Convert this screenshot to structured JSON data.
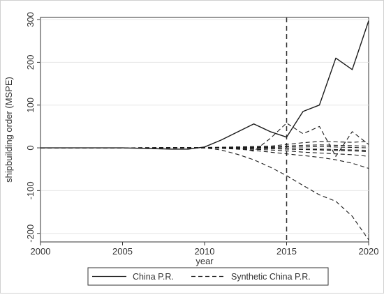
{
  "chart_data": {
    "type": "line",
    "title": "",
    "xlabel": "year",
    "ylabel": "shipbuilding order (MSPE)",
    "xlim": [
      2000,
      2020
    ],
    "ylim": [
      -220,
      305
    ],
    "x_ticks": [
      2000,
      2005,
      2010,
      2015,
      2020
    ],
    "x_tick_labels": [
      "2000",
      "2005",
      "2010",
      "2015",
      "2020"
    ],
    "y_ticks": [
      -200,
      -100,
      0,
      100,
      200,
      300
    ],
    "y_tick_labels": [
      "-200",
      "-100",
      "0",
      "100",
      "200",
      "300"
    ],
    "grid": "horizontal",
    "vline_x": 2015,
    "legend_position": "bottom",
    "legend": [
      {
        "label": "China P.R.",
        "style": "solid"
      },
      {
        "label": "Synthetic China P.R.",
        "style": "dashed"
      }
    ],
    "colors": {
      "line": "#1a1a1a",
      "grid": "#e6e6e6",
      "axis": "#333333"
    },
    "series": [
      {
        "name": "China P.R.",
        "style": "solid",
        "x": [
          2000,
          2001,
          2002,
          2003,
          2004,
          2005,
          2006,
          2007,
          2008,
          2009,
          2010,
          2011,
          2012,
          2013,
          2014,
          2015,
          2016,
          2017,
          2018,
          2019,
          2020
        ],
        "y": [
          0,
          0,
          0,
          0,
          0,
          0,
          -1,
          -2,
          -3,
          -3,
          2,
          18,
          37,
          56,
          38,
          25,
          85,
          100,
          210,
          183,
          297
        ]
      },
      {
        "style": "dashed",
        "x": [
          2000,
          2005,
          2008,
          2010,
          2011,
          2012,
          2013,
          2014,
          2015,
          2016,
          2017,
          2018,
          2019,
          2020
        ],
        "y": [
          0,
          0,
          1,
          0,
          -5,
          -15,
          -28,
          -45,
          -65,
          -88,
          -110,
          -125,
          -160,
          -215
        ]
      },
      {
        "style": "dashed",
        "x": [
          2000,
          2005,
          2010,
          2012,
          2013,
          2014,
          2015,
          2016,
          2017,
          2018,
          2019,
          2020
        ],
        "y": [
          0,
          0,
          1,
          2,
          -8,
          22,
          58,
          33,
          50,
          -20,
          38,
          8
        ]
      },
      {
        "style": "dashed",
        "x": [
          2000,
          2005,
          2010,
          2012,
          2013,
          2014,
          2015,
          2016,
          2017,
          2018,
          2019,
          2020
        ],
        "y": [
          0,
          0,
          1,
          -3,
          -6,
          -10,
          -14,
          -18,
          -22,
          -28,
          -36,
          -48
        ]
      },
      {
        "style": "dashed",
        "x": [
          2000,
          2005,
          2010,
          2012,
          2014,
          2015,
          2016,
          2017,
          2018,
          2019,
          2020
        ],
        "y": [
          0,
          0,
          0,
          2,
          4,
          8,
          12,
          15,
          14,
          13,
          15
        ]
      },
      {
        "style": "dashed",
        "x": [
          2000,
          2005,
          2010,
          2012,
          2014,
          2015,
          2016,
          2017,
          2018,
          2019,
          2020
        ],
        "y": [
          0,
          0,
          0,
          -2,
          -5,
          -7,
          -10,
          -12,
          -14,
          -16,
          -20
        ]
      },
      {
        "style": "dashed",
        "x": [
          2000,
          2005,
          2010,
          2012,
          2014,
          2015,
          2016,
          2017,
          2018,
          2019,
          2020
        ],
        "y": [
          0,
          0,
          0,
          1,
          2,
          4,
          6,
          7,
          6,
          5,
          4
        ]
      },
      {
        "style": "dashed",
        "x": [
          2000,
          2005,
          2010,
          2012,
          2014,
          2015,
          2016,
          2017,
          2018,
          2019,
          2020
        ],
        "y": [
          0,
          0,
          0,
          -1,
          -2,
          -3,
          -4,
          -5,
          -6,
          -7,
          -9
        ]
      },
      {
        "style": "dashed",
        "x": [
          2000,
          2005,
          2010,
          2012,
          2014,
          2015,
          2016,
          2017,
          2018,
          2019,
          2020
        ],
        "y": [
          0,
          0,
          0,
          1,
          1,
          2,
          2,
          3,
          2,
          1,
          0
        ]
      },
      {
        "style": "dashed",
        "x": [
          2000,
          2005,
          2010,
          2012,
          2014,
          2015,
          2016,
          2017,
          2018,
          2019,
          2020
        ],
        "y": [
          0,
          0,
          0,
          -1,
          -1,
          -2,
          -3,
          -3,
          -4,
          -5,
          -6
        ]
      }
    ]
  }
}
